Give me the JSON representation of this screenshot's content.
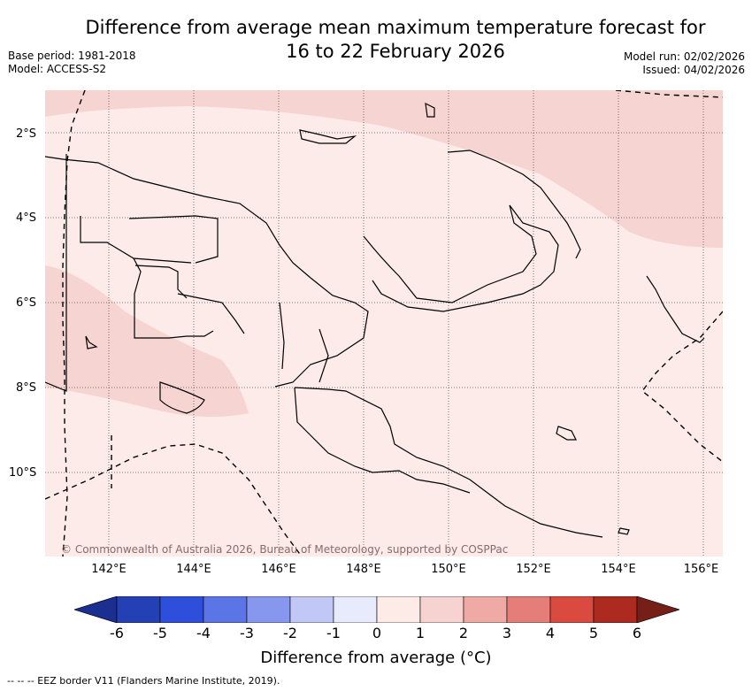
{
  "title_line1": "Difference from average mean maximum temperature forecast for",
  "title_line2": "16 to 22 February 2026",
  "base_period": "Base period: 1981-2018",
  "model": "Model: ACCESS-S2",
  "model_run": "Model run: 02/02/2026",
  "issued": "Issued: 04/02/2026",
  "lat_labels": [
    "2°S",
    "4°S",
    "6°S",
    "8°S",
    "10°S"
  ],
  "lon_labels": [
    "142°E",
    "144°E",
    "146°E",
    "148°E",
    "150°E",
    "152°E",
    "154°E",
    "156°E"
  ],
  "copyright": "© Commonwealth of Australia 2026, Bureau of Meteorology, supported by COSPPac",
  "colorbar": {
    "title": "Difference from average (°C)",
    "ticks": [
      "-6",
      "-5",
      "-4",
      "-3",
      "-2",
      "-1",
      "0",
      "1",
      "2",
      "3",
      "4",
      "5",
      "6"
    ],
    "colors": [
      "#1a2f8f",
      "#2440b5",
      "#2d4fdc",
      "#5b74e6",
      "#8797ee",
      "#c2c8f5",
      "#e8ebfb",
      "#fdebe8",
      "#f6d3d1",
      "#f0aaa6",
      "#e57e78",
      "#da4a3f",
      "#ad2a21",
      "#761e18"
    ]
  },
  "footnote": "--  --  -- EEZ border V11 (Flanders Marine Institute, 2019).",
  "map_colors": {
    "ocean_base": "#fcebe9",
    "warm_band": "#f6d4d2",
    "coast": "#000000",
    "grid": "#555555"
  }
}
